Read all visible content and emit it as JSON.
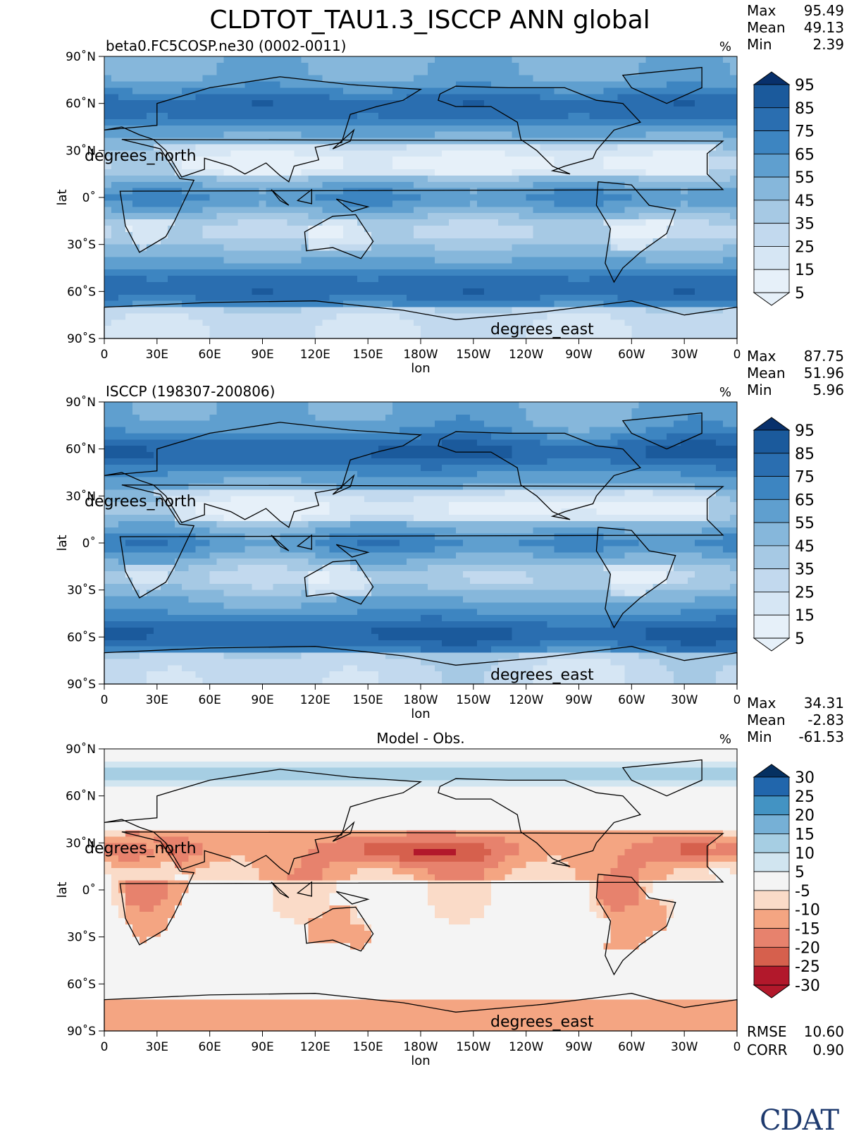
{
  "title": "CLDTOT_TAU1.3_ISCCP ANN global",
  "logo": "CDAT",
  "colors": {
    "seq": [
      "#e6f0f9",
      "#d6e6f4",
      "#c2d9ee",
      "#a6c9e4",
      "#86b7db",
      "#5f9fcf",
      "#3d85c1",
      "#2a6eb0",
      "#1b5a9c",
      "#08306b"
    ],
    "div": [
      "#67001f",
      "#b2182b",
      "#d6604d",
      "#e7826d",
      "#f4a582",
      "#fadbc8",
      "#f4f4f4",
      "#d1e5f0",
      "#a6cee3",
      "#76b0d6",
      "#4393c3",
      "#2166ac",
      "#053061"
    ]
  },
  "chart_data": [
    {
      "type": "heatmap",
      "subtitle": "beta0.FC5COSP.ne30 (0002-0011)",
      "units": "%",
      "stats": [
        {
          "label": "Max",
          "value": "95.49"
        },
        {
          "label": "Mean",
          "value": "49.13"
        },
        {
          "label": "Min",
          "value": "2.39"
        }
      ],
      "xlabel": "lon",
      "ylabel": "lat",
      "x_ticks": [
        "0",
        "30E",
        "60E",
        "90E",
        "120E",
        "150E",
        "180W",
        "150W",
        "120W",
        "90W",
        "60W",
        "30W",
        "0"
      ],
      "y_ticks": [
        "90˚N",
        "60˚N",
        "30˚N",
        "0˚",
        "30˚S",
        "60˚S",
        "90˚S"
      ],
      "x_unit_label": "degrees_east",
      "y_unit_label": "degrees_north",
      "colorbar": [
        "95",
        "85",
        "75",
        "65",
        "55",
        "45",
        "35",
        "25",
        "15",
        "5"
      ],
      "palette": "seq",
      "mode": "model"
    },
    {
      "type": "heatmap",
      "subtitle": "ISCCP (198307-200806)",
      "units": "%",
      "stats": [
        {
          "label": "Max",
          "value": "87.75"
        },
        {
          "label": "Mean",
          "value": "51.96"
        },
        {
          "label": "Min",
          "value": "5.96"
        }
      ],
      "xlabel": "lon",
      "ylabel": "lat",
      "x_ticks": [
        "0",
        "30E",
        "60E",
        "90E",
        "120E",
        "150E",
        "180W",
        "150W",
        "120W",
        "90W",
        "60W",
        "30W",
        "0"
      ],
      "y_ticks": [
        "90˚N",
        "60˚N",
        "30˚N",
        "0˚",
        "30˚S",
        "60˚S",
        "90˚S"
      ],
      "x_unit_label": "degrees_east",
      "y_unit_label": "degrees_north",
      "colorbar": [
        "95",
        "85",
        "75",
        "65",
        "55",
        "45",
        "35",
        "25",
        "15",
        "5"
      ],
      "palette": "seq",
      "mode": "obs"
    },
    {
      "type": "heatmap",
      "subtitle": "Model - Obs.",
      "units": "%",
      "stats": [
        {
          "label": "Max",
          "value": "34.31"
        },
        {
          "label": "Mean",
          "value": "-2.83"
        },
        {
          "label": "Min",
          "value": "-61.53"
        }
      ],
      "xlabel": "lon",
      "ylabel": "lat",
      "x_ticks": [
        "0",
        "30E",
        "60E",
        "90E",
        "120E",
        "150E",
        "180W",
        "150W",
        "120W",
        "90W",
        "60W",
        "30W",
        "0"
      ],
      "y_ticks": [
        "90˚N",
        "60˚N",
        "30˚N",
        "0˚",
        "30˚S",
        "60˚S",
        "90˚S"
      ],
      "x_unit_label": "degrees_east",
      "y_unit_label": "degrees_north",
      "colorbar": [
        "30",
        "25",
        "20",
        "15",
        "10",
        "5",
        "-5",
        "-10",
        "-15",
        "-20",
        "-25",
        "-30"
      ],
      "palette": "div",
      "mode": "diff",
      "footer_stats": [
        {
          "label": "RMSE",
          "value": "10.60"
        },
        {
          "label": "CORR",
          "value": "0.90"
        }
      ]
    }
  ]
}
